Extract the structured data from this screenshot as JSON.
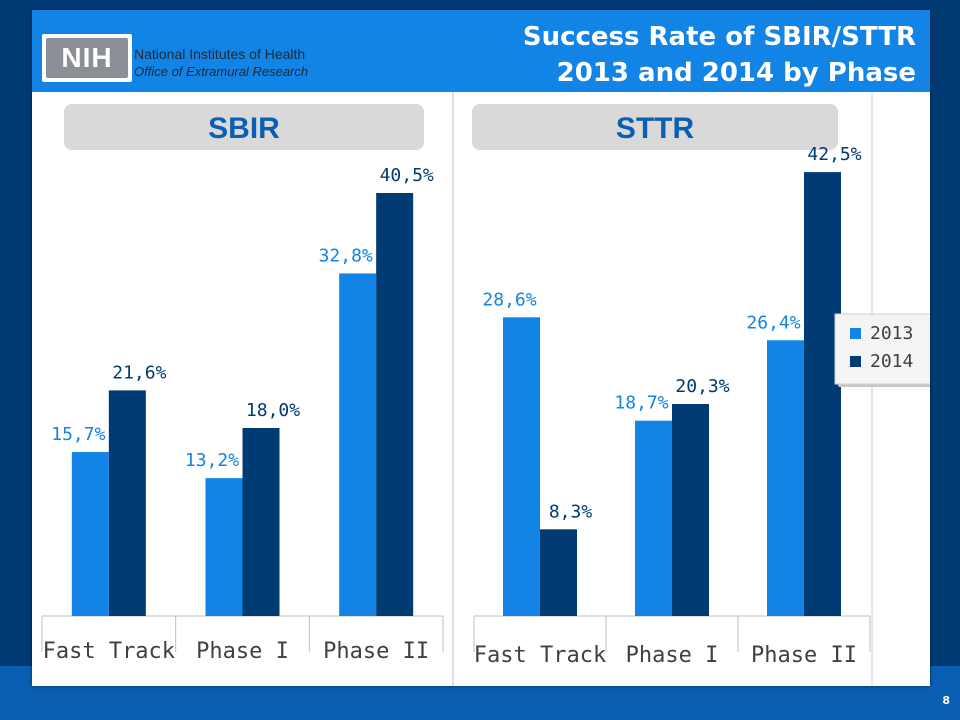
{
  "header": {
    "title_line1": "Success Rate of SBIR/STTR",
    "title_line2": "2013 and 2014 by Phase",
    "logo_text": "NIH",
    "org_name": "National Institutes of Health",
    "org_sub": "Office of Extramural Research"
  },
  "footer": {
    "slide_number": "8"
  },
  "colors": {
    "series_2013": "#1184e5",
    "series_2014": "#003b73",
    "panel_label_bg": "#d9d9d9"
  },
  "chart_data": [
    {
      "type": "bar",
      "panel_label": "SBIR",
      "categories": [
        "Fast Track",
        "Phase I",
        "Phase II"
      ],
      "series": [
        {
          "name": "2013",
          "values": [
            15.7,
            13.2,
            32.8
          ],
          "labels": [
            "15,7%",
            "13,2%",
            "32,8%"
          ]
        },
        {
          "name": "2014",
          "values": [
            21.6,
            18.0,
            40.5
          ],
          "labels": [
            "21,6%",
            "18,0%",
            "40,5%"
          ]
        }
      ],
      "ylim": [
        0,
        45
      ]
    },
    {
      "type": "bar",
      "panel_label": "STTR",
      "categories": [
        "Fast Track",
        "Phase I",
        "Phase II"
      ],
      "series": [
        {
          "name": "2013",
          "values": [
            28.6,
            18.7,
            26.4
          ],
          "labels": [
            "28,6%",
            "18,7%",
            "26,4%"
          ]
        },
        {
          "name": "2014",
          "values": [
            8.3,
            20.3,
            42.5
          ],
          "labels": [
            "8,3%",
            "20,3%",
            "42,5%"
          ]
        }
      ],
      "ylim": [
        0,
        45
      ],
      "legend": [
        "2013",
        "2014"
      ],
      "legend_position": "right"
    }
  ]
}
